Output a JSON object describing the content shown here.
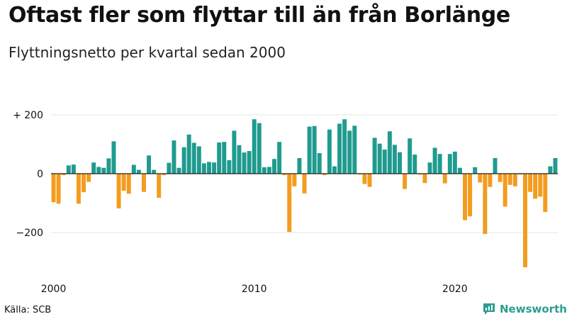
{
  "header": {
    "title": "Oftast fler som flyttar till än från Borlänge",
    "subtitle": "Flyttningsnetto per kvartal sedan 2000"
  },
  "footer": {
    "source": "Källa: SCB",
    "brand": "Newsworthy"
  },
  "colors": {
    "positive": "#1f9b8f",
    "negative": "#f39c1e",
    "axis": "#222222",
    "grid": "#e6e6e6",
    "brand": "#2a9d8f"
  },
  "chart_data": {
    "type": "bar",
    "title": "Oftast fler som flyttar till än från Borlänge",
    "subtitle": "Flyttningsnetto per kvartal sedan 2000",
    "xlabel": "",
    "ylabel": "",
    "x_start": 2000,
    "periods_per_year": 4,
    "ylim": [
      -330,
      230
    ],
    "y_ticks": [
      {
        "value": 200,
        "label": "+ 200"
      },
      {
        "value": 0,
        "label": "0"
      },
      {
        "value": -200,
        "label": "−200"
      }
    ],
    "x_ticks": [
      {
        "index": 0,
        "label": "2000"
      },
      {
        "index": 40,
        "label": "2010"
      },
      {
        "index": 80,
        "label": "2020"
      }
    ],
    "grid": true,
    "legend": "none",
    "values": [
      -97,
      -102,
      -5,
      28,
      31,
      -102,
      -63,
      -28,
      38,
      23,
      20,
      52,
      110,
      -118,
      -58,
      -68,
      30,
      13,
      -62,
      62,
      13,
      -82,
      -5,
      37,
      113,
      20,
      90,
      133,
      105,
      93,
      35,
      40,
      38,
      106,
      108,
      46,
      146,
      97,
      72,
      77,
      185,
      172,
      22,
      23,
      50,
      108,
      -5,
      -198,
      -43,
      53,
      -67,
      160,
      162,
      70,
      -5,
      150,
      25,
      170,
      185,
      146,
      163,
      -3,
      -35,
      -45,
      122,
      102,
      82,
      144,
      98,
      73,
      -52,
      120,
      65,
      -3,
      -32,
      38,
      88,
      67,
      -33,
      67,
      75,
      20,
      -158,
      -145,
      22,
      -30,
      -205,
      -45,
      53,
      -28,
      -112,
      -38,
      -43,
      -3,
      -318,
      -62,
      -85,
      -78,
      -130,
      25,
      53
    ]
  }
}
